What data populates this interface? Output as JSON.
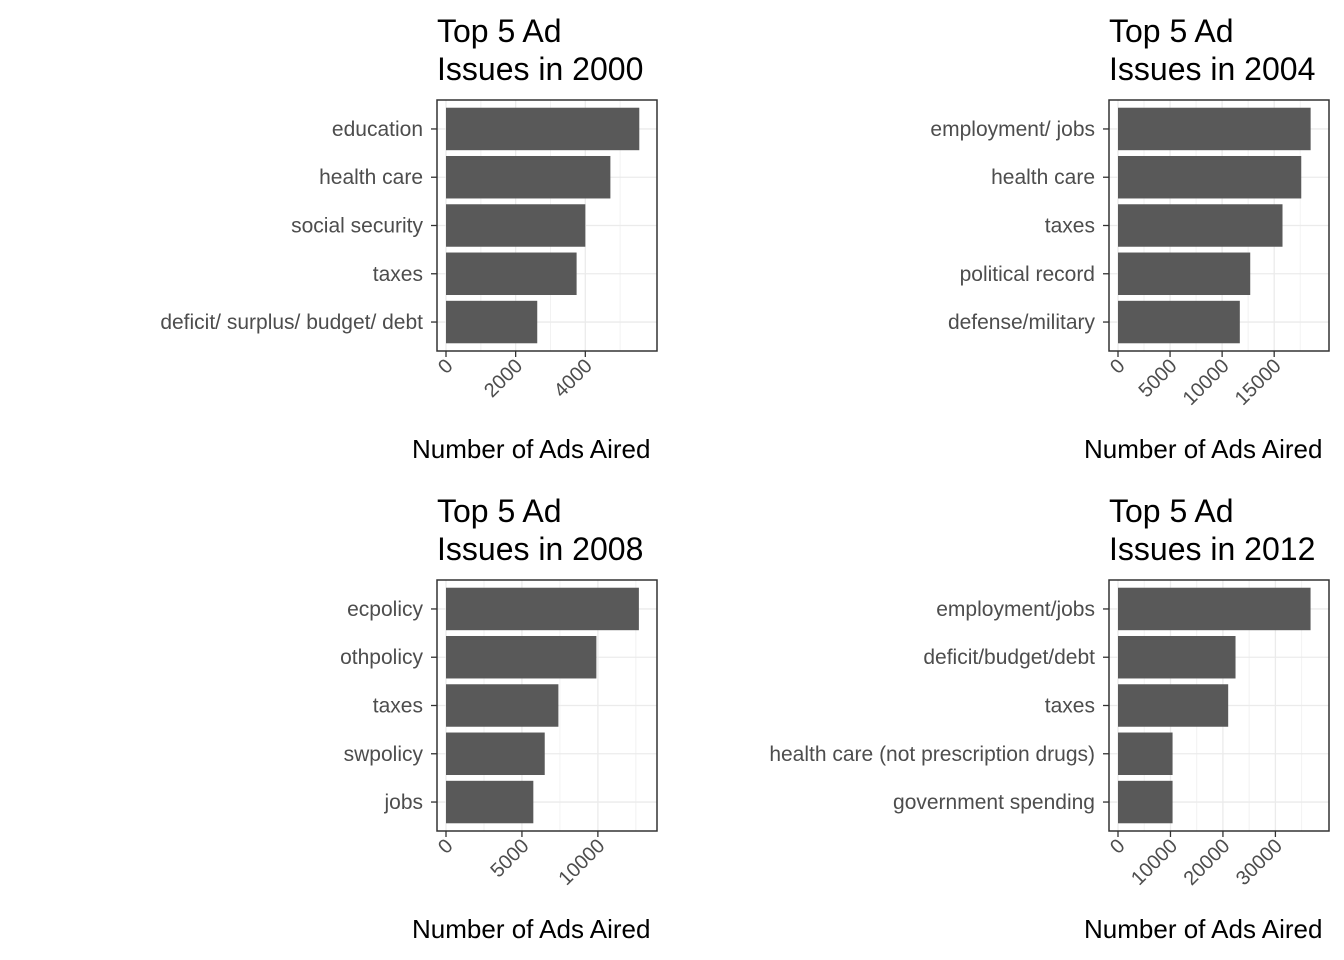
{
  "chart_data": [
    {
      "type": "bar",
      "orientation": "horizontal",
      "title": "Top 5 Ad Issues in 2000",
      "title_lines": [
        "Top 5 Ad",
        "Issues in 2000"
      ],
      "xlabel": "Number of Ads Aired",
      "ylabel": "",
      "categories": [
        "education",
        "health care",
        "social security",
        "taxes",
        "deficit/ surplus/ budget/ debt"
      ],
      "values": [
        5550,
        4720,
        4000,
        3750,
        2620
      ],
      "xlim": [
        0,
        5800
      ],
      "xticks": [
        0,
        2000,
        4000
      ],
      "tick_labels": [
        "0",
        "2000",
        "4000"
      ],
      "bar_color": "#595959",
      "grid": true,
      "legend": "none"
    },
    {
      "type": "bar",
      "orientation": "horizontal",
      "title": "Top 5 Ad Issues in 2004",
      "title_lines": [
        "Top 5 Ad",
        "Issues in 2004"
      ],
      "xlabel": "Number of Ads Aired",
      "ylabel": "",
      "categories": [
        "employment/ jobs",
        "health care",
        "taxes",
        "political record",
        "defense/military"
      ],
      "values": [
        18500,
        17600,
        15800,
        12700,
        11700
      ],
      "xlim": [
        0,
        19400
      ],
      "xticks": [
        0,
        5000,
        10000,
        15000
      ],
      "tick_labels": [
        "0",
        "5000",
        "10000",
        "15000"
      ],
      "bar_color": "#595959",
      "grid": true,
      "legend": "none"
    },
    {
      "type": "bar",
      "orientation": "horizontal",
      "title": "Top 5 Ad Issues in 2008",
      "title_lines": [
        "Top 5 Ad",
        "Issues in 2008"
      ],
      "xlabel": "Number of Ads Aired",
      "ylabel": "",
      "categories": [
        "ecpolicy",
        "othpolicy",
        "taxes",
        "swpolicy",
        "jobs"
      ],
      "values": [
        12700,
        9900,
        7400,
        6500,
        5750
      ],
      "xlim": [
        0,
        13300
      ],
      "xticks": [
        0,
        5000,
        10000
      ],
      "tick_labels": [
        "0",
        "5000",
        "10000"
      ],
      "bar_color": "#595959",
      "grid": true,
      "legend": "none"
    },
    {
      "type": "bar",
      "orientation": "horizontal",
      "title": "Top 5 Ad Issues in 2012",
      "title_lines": [
        "Top 5 Ad",
        "Issues in 2012"
      ],
      "xlabel": "Number of Ads Aired",
      "ylabel": "",
      "categories": [
        "employment/jobs",
        "deficit/budget/debt",
        "taxes",
        "health care (not prescription drugs)",
        "government spending"
      ],
      "values": [
        36700,
        22400,
        21000,
        10400,
        10400
      ],
      "xlim": [
        0,
        38500
      ],
      "xticks": [
        0,
        10000,
        20000,
        30000
      ],
      "tick_labels": [
        "0",
        "10000",
        "20000",
        "30000"
      ],
      "bar_color": "#595959",
      "grid": true,
      "legend": "none"
    }
  ]
}
